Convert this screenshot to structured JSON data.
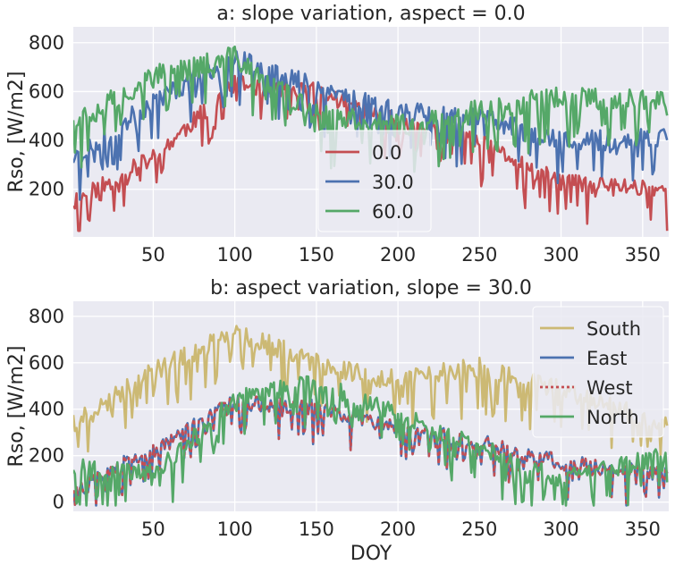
{
  "chart_data": [
    {
      "type": "line",
      "title": "a: slope variation, aspect = 0.0",
      "xlabel": "",
      "ylabel": "Rso, [W/m2]",
      "xlim": [
        1,
        366
      ],
      "ylim": [
        5,
        865
      ],
      "xticks": [
        50,
        100,
        150,
        200,
        250,
        300,
        350
      ],
      "yticks": [
        200,
        400,
        600,
        800
      ],
      "grid": true,
      "legend": "lower-center",
      "x_knots": [
        1,
        50,
        100,
        150,
        200,
        250,
        300,
        366
      ],
      "series": [
        {
          "name": "0.0",
          "color": "#c44e52",
          "dash": "",
          "values": [
            150,
            330,
            630,
            600,
            470,
            390,
            230,
            200
          ],
          "amp": 75,
          "seed": 11
        },
        {
          "name": "30.0",
          "color": "#4c72b0",
          "dash": "",
          "values": [
            320,
            560,
            740,
            620,
            520,
            500,
            390,
            420
          ],
          "amp": 85,
          "seed": 23
        },
        {
          "name": "60.0",
          "color": "#55a868",
          "dash": "",
          "values": [
            470,
            660,
            740,
            500,
            460,
            520,
            580,
            560
          ],
          "amp": 95,
          "seed": 37
        }
      ]
    },
    {
      "type": "line",
      "title": "b: aspect variation, slope = 30.0",
      "xlabel": "DOY",
      "ylabel": "Rso, [W/m2]",
      "xlim": [
        1,
        366
      ],
      "ylim": [
        -40,
        865
      ],
      "xticks": [
        50,
        100,
        150,
        200,
        250,
        300,
        350
      ],
      "yticks": [
        0,
        200,
        400,
        600,
        800
      ],
      "grid": true,
      "legend": "upper-right",
      "x_knots": [
        1,
        50,
        100,
        150,
        200,
        250,
        300,
        366
      ],
      "series": [
        {
          "name": "South",
          "color": "#ccb974",
          "dash": "",
          "values": [
            330,
            560,
            730,
            600,
            520,
            580,
            480,
            330
          ],
          "amp": 90,
          "seed": 41
        },
        {
          "name": "East",
          "color": "#4c72b0",
          "dash": "",
          "values": [
            80,
            220,
            430,
            410,
            320,
            260,
            170,
            120
          ],
          "amp": 70,
          "seed": 53
        },
        {
          "name": "West",
          "color": "#c44e52",
          "dash": "4,4",
          "values": [
            80,
            220,
            430,
            410,
            320,
            260,
            170,
            120
          ],
          "amp": 70,
          "seed": 53
        },
        {
          "name": "North",
          "color": "#55a868",
          "dash": "",
          "values": [
            150,
            120,
            440,
            520,
            380,
            240,
            100,
            200
          ],
          "amp": 80,
          "seed": 67
        }
      ]
    }
  ]
}
